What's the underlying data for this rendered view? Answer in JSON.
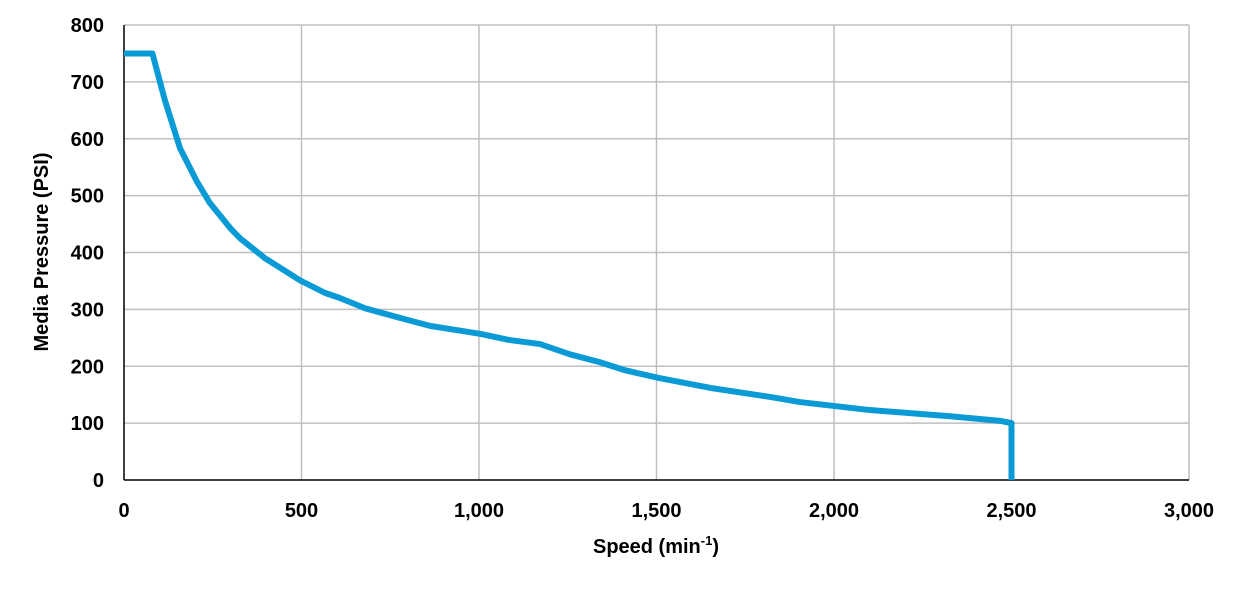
{
  "chart_data": {
    "type": "line",
    "title": "",
    "xlabel": "Speed (min",
    "xlabel_sup": "-1",
    "xlabel_end": ")",
    "ylabel": "Media Pressure (PSI)",
    "xlim": [
      0,
      3000
    ],
    "ylim": [
      0,
      800
    ],
    "xticks": [
      0,
      500,
      1000,
      1500,
      2000,
      2500,
      3000
    ],
    "xtick_labels": [
      "0",
      "500",
      "1,000",
      "1,500",
      "2,000",
      "2,500",
      "3,000"
    ],
    "yticks": [
      0,
      100,
      200,
      300,
      400,
      500,
      600,
      700,
      800
    ],
    "ytick_labels": [
      "0",
      "100",
      "200",
      "300",
      "400",
      "500",
      "600",
      "700",
      "800"
    ],
    "grid": true,
    "legend": "none",
    "colors": {
      "line": "#0a9ad6",
      "grid": "#bfbfbf",
      "axis": "#000000"
    },
    "series": [
      {
        "x": [
          0,
          80,
          115,
          158,
          206,
          242,
          299,
          327,
          397,
          496,
          566,
          608,
          679,
          777,
          862,
          932,
          1003,
          1087,
          1172,
          1214,
          1256,
          1341,
          1411,
          1510,
          1651,
          1820,
          1904,
          2101,
          2327,
          2468,
          2500,
          2500
        ],
        "y": [
          750,
          750,
          668,
          583,
          524,
          487,
          443,
          425,
          390,
          351,
          329,
          320,
          302,
          285,
          271,
          264,
          257,
          246,
          239,
          230,
          221,
          207,
          193,
          179,
          162,
          146,
          137,
          123,
          112,
          104,
          100,
          0
        ]
      }
    ]
  }
}
